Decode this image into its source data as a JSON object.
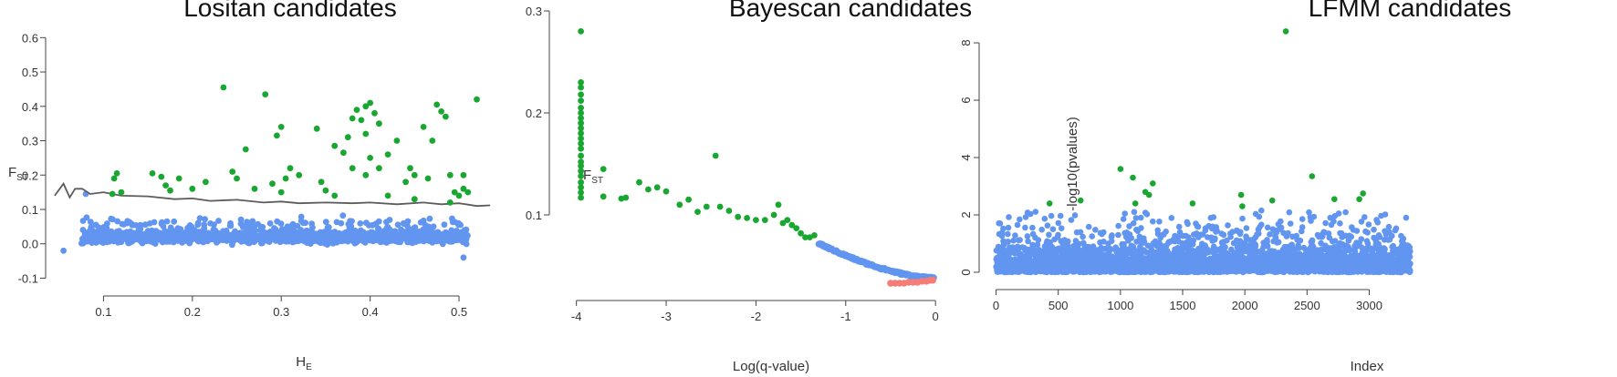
{
  "colors": {
    "outlier": "#1aa731",
    "neutral": "#6195f0",
    "balancing": "#f47d78",
    "threshold_line": "#5c5c5c",
    "axis": "#444444"
  },
  "chart_data": [
    {
      "type": "scatter",
      "title": "Lositan candidates",
      "xlabel": {
        "main": "H",
        "sub": "E"
      },
      "ylabel": {
        "main": "F",
        "sub": "ST"
      },
      "xlim": [
        0.04,
        0.54
      ],
      "ylim": [
        -0.12,
        0.63
      ],
      "x_ticks": [
        0.1,
        0.2,
        0.3,
        0.4,
        0.5
      ],
      "x_tick_labels": [
        "0.1",
        "0.2",
        "0.3",
        "0.4",
        "0.5"
      ],
      "y_ticks": [
        -0.1,
        0.0,
        0.1,
        0.2,
        0.3,
        0.4,
        0.5,
        0.6
      ],
      "y_tick_labels": [
        "-0.1",
        "0.0",
        "0.1",
        "0.2",
        "0.3",
        "0.4",
        "0.5",
        "0.6"
      ],
      "threshold_line": {
        "x": [
          0.045,
          0.055,
          0.062,
          0.068,
          0.076,
          0.085,
          0.1,
          0.12,
          0.15,
          0.18,
          0.2,
          0.22,
          0.25,
          0.28,
          0.3,
          0.32,
          0.35,
          0.38,
          0.4,
          0.43,
          0.46,
          0.48,
          0.5,
          0.52,
          0.535
        ],
        "y": [
          0.14,
          0.175,
          0.135,
          0.16,
          0.16,
          0.145,
          0.15,
          0.14,
          0.138,
          0.13,
          0.132,
          0.125,
          0.128,
          0.12,
          0.123,
          0.118,
          0.12,
          0.118,
          0.12,
          0.115,
          0.12,
          0.115,
          0.118,
          0.11,
          0.112
        ]
      },
      "series": [
        {
          "role": "outlier",
          "points": [
            [
              0.115,
              0.205
            ],
            [
              0.112,
              0.19
            ],
            [
              0.12,
              0.15
            ],
            [
              0.11,
              0.145
            ],
            [
              0.155,
              0.205
            ],
            [
              0.165,
              0.195
            ],
            [
              0.17,
              0.17
            ],
            [
              0.185,
              0.19
            ],
            [
              0.175,
              0.155
            ],
            [
              0.2,
              0.16
            ],
            [
              0.215,
              0.18
            ],
            [
              0.235,
              0.455
            ],
            [
              0.245,
              0.21
            ],
            [
              0.25,
              0.19
            ],
            [
              0.26,
              0.275
            ],
            [
              0.27,
              0.16
            ],
            [
              0.282,
              0.435
            ],
            [
              0.29,
              0.175
            ],
            [
              0.295,
              0.315
            ],
            [
              0.3,
              0.34
            ],
            [
              0.305,
              0.19
            ],
            [
              0.31,
              0.22
            ],
            [
              0.32,
              0.2
            ],
            [
              0.3,
              0.15
            ],
            [
              0.34,
              0.335
            ],
            [
              0.345,
              0.18
            ],
            [
              0.35,
              0.155
            ],
            [
              0.36,
              0.285
            ],
            [
              0.37,
              0.265
            ],
            [
              0.375,
              0.31
            ],
            [
              0.38,
              0.365
            ],
            [
              0.385,
              0.39
            ],
            [
              0.39,
              0.36
            ],
            [
              0.395,
              0.4
            ],
            [
              0.4,
              0.41
            ],
            [
              0.405,
              0.38
            ],
            [
              0.41,
              0.35
            ],
            [
              0.395,
              0.32
            ],
            [
              0.4,
              0.25
            ],
            [
              0.395,
              0.2
            ],
            [
              0.41,
              0.22
            ],
            [
              0.42,
              0.26
            ],
            [
              0.43,
              0.3
            ],
            [
              0.44,
              0.18
            ],
            [
              0.445,
              0.22
            ],
            [
              0.45,
              0.2
            ],
            [
              0.46,
              0.34
            ],
            [
              0.465,
              0.19
            ],
            [
              0.47,
              0.3
            ],
            [
              0.475,
              0.405
            ],
            [
              0.48,
              0.385
            ],
            [
              0.485,
              0.37
            ],
            [
              0.49,
              0.2
            ],
            [
              0.495,
              0.15
            ],
            [
              0.5,
              0.14
            ],
            [
              0.505,
              0.16
            ],
            [
              0.51,
              0.15
            ],
            [
              0.52,
              0.42
            ],
            [
              0.505,
              0.2
            ],
            [
              0.49,
              0.12
            ],
            [
              0.45,
              0.13
            ],
            [
              0.36,
              0.14
            ],
            [
              0.42,
              0.14
            ],
            [
              0.38,
              0.22
            ]
          ]
        },
        {
          "role": "neutral",
          "count": 1400,
          "x_range": [
            0.075,
            0.51
          ],
          "y_range": [
            -0.04,
            0.12
          ],
          "extra_points": [
            [
              0.055,
              -0.02
            ],
            [
              0.08,
              0.145
            ],
            [
              0.505,
              -0.04
            ]
          ]
        }
      ]
    },
    {
      "type": "scatter",
      "title": "Bayescan candidates",
      "xlabel": {
        "main": "Log(q-value)"
      },
      "ylabel": {
        "main": "F",
        "sub": "ST"
      },
      "xlim": [
        -4.2,
        0.1
      ],
      "ylim": [
        0.025,
        0.3
      ],
      "x_ticks": [
        -4,
        -3,
        -2,
        -1,
        0
      ],
      "x_tick_labels": [
        "-4",
        "-3",
        "-2",
        "-1",
        "0"
      ],
      "y_ticks": [
        0.1,
        0.2,
        0.3
      ],
      "y_tick_labels": [
        "0.1",
        "0.2",
        "0.3"
      ],
      "series": [
        {
          "role": "outlier",
          "points": [
            [
              -3.95,
              0.28
            ],
            [
              -3.95,
              0.23
            ],
            [
              -3.95,
              0.225
            ],
            [
              -3.95,
              0.218
            ],
            [
              -3.95,
              0.212
            ],
            [
              -3.95,
              0.205
            ],
            [
              -3.95,
              0.2
            ],
            [
              -3.95,
              0.195
            ],
            [
              -3.95,
              0.19
            ],
            [
              -3.95,
              0.185
            ],
            [
              -3.95,
              0.18
            ],
            [
              -3.95,
              0.175
            ],
            [
              -3.95,
              0.17
            ],
            [
              -3.95,
              0.165
            ],
            [
              -3.95,
              0.158
            ],
            [
              -3.95,
              0.152
            ],
            [
              -3.95,
              0.148
            ],
            [
              -3.95,
              0.143
            ],
            [
              -3.95,
              0.138
            ],
            [
              -3.95,
              0.132
            ],
            [
              -3.95,
              0.127
            ],
            [
              -3.95,
              0.122
            ],
            [
              -3.95,
              0.117
            ],
            [
              -3.7,
              0.145
            ],
            [
              -3.7,
              0.118
            ],
            [
              -3.5,
              0.116
            ],
            [
              -3.45,
              0.117
            ],
            [
              -3.3,
              0.132
            ],
            [
              -3.2,
              0.125
            ],
            [
              -3.1,
              0.127
            ],
            [
              -3.0,
              0.123
            ],
            [
              -2.85,
              0.11
            ],
            [
              -2.75,
              0.115
            ],
            [
              -2.65,
              0.103
            ],
            [
              -2.55,
              0.108
            ],
            [
              -2.45,
              0.158
            ],
            [
              -2.4,
              0.108
            ],
            [
              -2.3,
              0.104
            ],
            [
              -2.2,
              0.098
            ],
            [
              -2.1,
              0.097
            ],
            [
              -2.0,
              0.095
            ],
            [
              -1.9,
              0.095
            ],
            [
              -1.8,
              0.1
            ],
            [
              -1.75,
              0.11
            ],
            [
              -1.7,
              0.092
            ],
            [
              -1.65,
              0.095
            ],
            [
              -1.6,
              0.09
            ],
            [
              -1.55,
              0.087
            ],
            [
              -1.5,
              0.082
            ],
            [
              -1.45,
              0.078
            ],
            [
              -1.4,
              0.078
            ],
            [
              -1.35,
              0.08
            ]
          ]
        },
        {
          "role": "neutral",
          "curve_from": [
            -1.3,
            0.072
          ],
          "curve_to": [
            -0.02,
            0.038
          ],
          "count": 160
        },
        {
          "role": "balancing",
          "points": [
            [
              -0.5,
              0.033
            ],
            [
              -0.45,
              0.033
            ],
            [
              -0.4,
              0.033
            ],
            [
              -0.35,
              0.033
            ],
            [
              -0.3,
              0.034
            ],
            [
              -0.25,
              0.034
            ],
            [
              -0.2,
              0.034
            ],
            [
              -0.15,
              0.035
            ],
            [
              -0.1,
              0.035
            ],
            [
              -0.06,
              0.036
            ],
            [
              -0.03,
              0.036
            ]
          ]
        }
      ]
    },
    {
      "type": "scatter",
      "title": "LFMM candidates",
      "xlabel": {
        "main": "Index"
      },
      "ylabel": {
        "main": "-log10(pvalues)"
      },
      "xlim": [
        -70,
        3400
      ],
      "ylim": [
        -0.35,
        8.7
      ],
      "x_ticks": [
        0,
        500,
        1000,
        1500,
        2000,
        2500,
        3000
      ],
      "x_tick_labels": [
        "0",
        "500",
        "1000",
        "1500",
        "2000",
        "2500",
        "3000"
      ],
      "y_ticks": [
        0,
        2,
        4,
        6,
        8
      ],
      "y_tick_labels": [
        "0",
        "2",
        "4",
        "6",
        "8"
      ],
      "series": [
        {
          "role": "outlier",
          "points": [
            [
              430,
              2.4
            ],
            [
              680,
              2.5
            ],
            [
              1000,
              3.6
            ],
            [
              1100,
              3.3
            ],
            [
              1200,
              2.8
            ],
            [
              1230,
              2.7
            ],
            [
              1260,
              3.1
            ],
            [
              1120,
              2.4
            ],
            [
              1580,
              2.4
            ],
            [
              1970,
              2.7
            ],
            [
              1980,
              2.3
            ],
            [
              2220,
              2.5
            ],
            [
              2330,
              8.4
            ],
            [
              2540,
              3.35
            ],
            [
              2720,
              2.55
            ],
            [
              2920,
              2.55
            ],
            [
              2950,
              2.75
            ]
          ]
        },
        {
          "role": "neutral",
          "index_range": [
            0,
            3330
          ],
          "count": 3330
        }
      ]
    }
  ]
}
